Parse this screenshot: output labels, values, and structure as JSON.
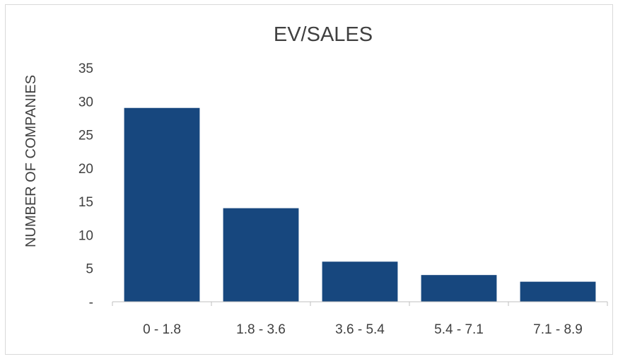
{
  "chart_data": {
    "type": "bar",
    "title": "EV/SALES",
    "xlabel": "",
    "ylabel": "NUMBER OF COMPANIES",
    "categories": [
      "0 - 1.8",
      "1.8 - 3.6",
      "3.6 - 5.4",
      "5.4 - 7.1",
      "7.1 - 8.9"
    ],
    "values": [
      29,
      14,
      6,
      4,
      3
    ],
    "ylim": [
      0,
      35
    ],
    "yticks": [
      0,
      5,
      10,
      15,
      20,
      25,
      30,
      35
    ],
    "ytick_labels": [
      "-",
      "5",
      "10",
      "15",
      "20",
      "25",
      "30",
      "35"
    ],
    "grid": false,
    "legend": "none",
    "bar_color": "#17477E",
    "axis_color": "#BFBFBF",
    "text_color": "#404040"
  }
}
